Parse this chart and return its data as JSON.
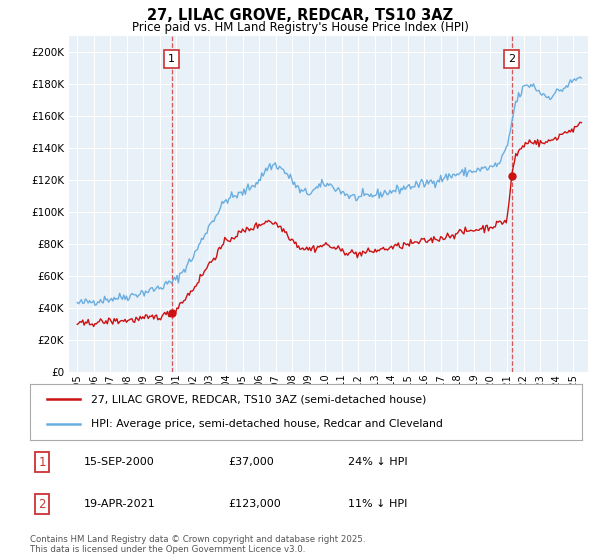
{
  "title": "27, LILAC GROVE, REDCAR, TS10 3AZ",
  "subtitle": "Price paid vs. HM Land Registry's House Price Index (HPI)",
  "bg_color": "#ffffff",
  "plot_bg_color": "#e8f0f8",
  "grid_color": "#ffffff",
  "hpi_color": "#6aaee0",
  "price_color": "#cc1111",
  "dashed_color": "#cc3333",
  "sale1_year": 2000.71,
  "sale1_price": 37000,
  "sale2_year": 2021.29,
  "sale2_price": 123000,
  "legend_entry1": "27, LILAC GROVE, REDCAR, TS10 3AZ (semi-detached house)",
  "legend_entry2": "HPI: Average price, semi-detached house, Redcar and Cleveland",
  "annotation1_date": "15-SEP-2000",
  "annotation1_price": "£37,000",
  "annotation1_hpi": "24% ↓ HPI",
  "annotation2_date": "19-APR-2021",
  "annotation2_price": "£123,000",
  "annotation2_hpi": "11% ↓ HPI",
  "footer": "Contains HM Land Registry data © Crown copyright and database right 2025.\nThis data is licensed under the Open Government Licence v3.0.",
  "ylim_max": 210000,
  "ylim_min": 0
}
